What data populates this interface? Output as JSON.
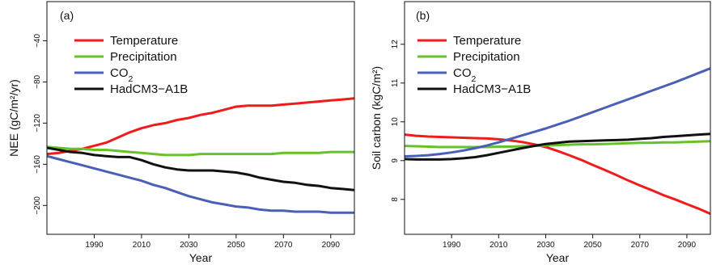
{
  "chart_data": [
    {
      "type": "line",
      "panel_label": "(a)",
      "xlabel": "Year",
      "ylabel": "NEE (gC/m²/yr)",
      "xlim": [
        1970,
        2100
      ],
      "ylim": [
        -228,
        -2
      ],
      "xticks": [
        1990,
        2010,
        2030,
        2050,
        2070,
        2090
      ],
      "xtick_labels": [
        "1990",
        "2010",
        "2030",
        "2050",
        "2070",
        "2090"
      ],
      "yticks": [
        -200,
        -160,
        -120,
        -80,
        -40
      ],
      "ytick_labels": [
        "−200",
        "−160",
        "−120",
        "−80",
        "−40"
      ],
      "grid": false,
      "legend_position": "top-left",
      "series": [
        {
          "name": "Temperature",
          "color": "#ee1c1c",
          "x": [
            1970,
            1975,
            1980,
            1985,
            1990,
            1995,
            2000,
            2005,
            2010,
            2015,
            2020,
            2025,
            2030,
            2035,
            2040,
            2045,
            2050,
            2055,
            2060,
            2065,
            2070,
            2075,
            2080,
            2085,
            2090,
            2095,
            2100
          ],
          "y": [
            -150,
            -149,
            -147,
            -145,
            -142,
            -139,
            -134,
            -129,
            -125,
            -122,
            -120,
            -117,
            -115,
            -112,
            -110,
            -107,
            -104,
            -103,
            -103,
            -103,
            -102,
            -101,
            -100,
            -99,
            -98,
            -97,
            -96
          ]
        },
        {
          "name": "Precipitation",
          "color": "#66c22b",
          "x": [
            1970,
            1975,
            1980,
            1985,
            1990,
            1995,
            2000,
            2005,
            2010,
            2015,
            2020,
            2025,
            2030,
            2035,
            2040,
            2045,
            2050,
            2055,
            2060,
            2065,
            2070,
            2075,
            2080,
            2085,
            2090,
            2095,
            2100
          ],
          "y": [
            -143,
            -144,
            -145,
            -145,
            -146,
            -146,
            -147,
            -148,
            -149,
            -150,
            -151,
            -151,
            -151,
            -150,
            -150,
            -150,
            -150,
            -150,
            -150,
            -150,
            -149,
            -149,
            -149,
            -149,
            -148,
            -148,
            -148
          ]
        },
        {
          "name": "CO₂",
          "color": "#4a5fb8",
          "x": [
            1970,
            1975,
            1980,
            1985,
            1990,
            1995,
            2000,
            2005,
            2010,
            2015,
            2020,
            2025,
            2030,
            2035,
            2040,
            2045,
            2050,
            2055,
            2060,
            2065,
            2070,
            2075,
            2080,
            2085,
            2090,
            2095,
            2100
          ],
          "y": [
            -152,
            -155,
            -158,
            -161,
            -164,
            -167,
            -170,
            -173,
            -176,
            -180,
            -183,
            -187,
            -191,
            -194,
            -197,
            -199,
            -201,
            -202,
            -204,
            -205,
            -205,
            -206,
            -206,
            -206,
            -207,
            -207,
            -207
          ]
        },
        {
          "name": "HadCM3−A1B",
          "color": "#111111",
          "x": [
            1970,
            1975,
            1980,
            1985,
            1990,
            1995,
            2000,
            2005,
            2010,
            2015,
            2020,
            2025,
            2030,
            2035,
            2040,
            2045,
            2050,
            2055,
            2060,
            2065,
            2070,
            2075,
            2080,
            2085,
            2090,
            2095,
            2100
          ],
          "y": [
            -144,
            -146,
            -148,
            -149,
            -151,
            -152,
            -153,
            -153,
            -156,
            -160,
            -163,
            -165,
            -166,
            -166,
            -166,
            -167,
            -168,
            -170,
            -173,
            -175,
            -177,
            -178,
            -180,
            -181,
            -183,
            -184,
            -185
          ]
        }
      ]
    },
    {
      "type": "line",
      "panel_label": "(b)",
      "xlabel": "Year",
      "ylabel": "Soil carbon (kgC/m²)",
      "xlim": [
        1970,
        2100
      ],
      "ylim": [
        7.1,
        13.1
      ],
      "xticks": [
        1990,
        2010,
        2030,
        2050,
        2070,
        2090
      ],
      "xtick_labels": [
        "1990",
        "2010",
        "2030",
        "2050",
        "2070",
        "2090"
      ],
      "yticks": [
        8,
        9,
        10,
        11,
        12
      ],
      "ytick_labels": [
        "8",
        "9",
        "10",
        "11",
        "12"
      ],
      "grid": false,
      "legend_position": "top-left",
      "series": [
        {
          "name": "Temperature",
          "color": "#ee1c1c",
          "x": [
            1970,
            1975,
            1980,
            1985,
            1990,
            1995,
            2000,
            2005,
            2010,
            2015,
            2020,
            2025,
            2030,
            2035,
            2040,
            2045,
            2050,
            2055,
            2060,
            2065,
            2070,
            2075,
            2080,
            2085,
            2090,
            2095,
            2100
          ],
          "y": [
            9.67,
            9.64,
            9.62,
            9.61,
            9.6,
            9.59,
            9.58,
            9.57,
            9.55,
            9.52,
            9.48,
            9.42,
            9.35,
            9.25,
            9.14,
            9.02,
            8.89,
            8.76,
            8.63,
            8.49,
            8.36,
            8.24,
            8.11,
            8.0,
            7.88,
            7.76,
            7.63
          ]
        },
        {
          "name": "Precipitation",
          "color": "#66c22b",
          "x": [
            1970,
            1975,
            1980,
            1985,
            1990,
            1995,
            2000,
            2005,
            2010,
            2015,
            2020,
            2025,
            2030,
            2035,
            2040,
            2045,
            2050,
            2055,
            2060,
            2065,
            2070,
            2075,
            2080,
            2085,
            2090,
            2095,
            2100
          ],
          "y": [
            9.38,
            9.37,
            9.36,
            9.35,
            9.35,
            9.35,
            9.35,
            9.35,
            9.36,
            9.36,
            9.37,
            9.38,
            9.39,
            9.4,
            9.41,
            9.42,
            9.42,
            9.43,
            9.44,
            9.45,
            9.46,
            9.46,
            9.47,
            9.47,
            9.48,
            9.49,
            9.5
          ]
        },
        {
          "name": "CO₂",
          "color": "#4a5fb8",
          "x": [
            1970,
            1975,
            1980,
            1985,
            1990,
            1995,
            2000,
            2005,
            2010,
            2015,
            2020,
            2025,
            2030,
            2035,
            2040,
            2045,
            2050,
            2055,
            2060,
            2065,
            2070,
            2075,
            2080,
            2085,
            2090,
            2095,
            2100
          ],
          "y": [
            9.11,
            9.12,
            9.14,
            9.17,
            9.21,
            9.26,
            9.32,
            9.39,
            9.47,
            9.56,
            9.65,
            9.74,
            9.83,
            9.93,
            10.03,
            10.14,
            10.25,
            10.36,
            10.47,
            10.58,
            10.69,
            10.8,
            10.91,
            11.02,
            11.14,
            11.26,
            11.38
          ]
        },
        {
          "name": "HadCM3−A1B",
          "color": "#111111",
          "x": [
            1970,
            1975,
            1980,
            1985,
            1990,
            1995,
            2000,
            2005,
            2010,
            2015,
            2020,
            2025,
            2030,
            2035,
            2040,
            2045,
            2050,
            2055,
            2060,
            2065,
            2070,
            2075,
            2080,
            2085,
            2090,
            2095,
            2100
          ],
          "y": [
            9.04,
            9.03,
            9.03,
            9.03,
            9.04,
            9.06,
            9.09,
            9.14,
            9.2,
            9.26,
            9.32,
            9.38,
            9.43,
            9.46,
            9.49,
            9.5,
            9.51,
            9.52,
            9.53,
            9.54,
            9.56,
            9.58,
            9.61,
            9.63,
            9.65,
            9.67,
            9.69
          ]
        }
      ]
    }
  ]
}
